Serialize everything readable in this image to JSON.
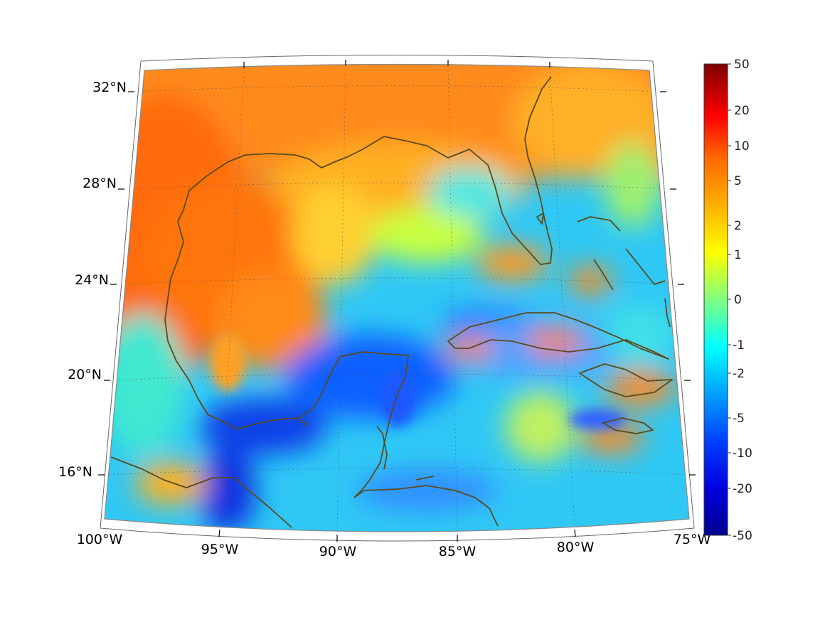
{
  "map": {
    "region": "Gulf of Mexico and Caribbean",
    "projection": "conic",
    "colormap": "jet",
    "coastline_color": "#5c4a1e",
    "lon_labels": [
      "100°W",
      "95°W",
      "90°W",
      "85°W",
      "80°W",
      "75°W"
    ],
    "lat_labels": [
      "16°N",
      "20°N",
      "24°N",
      "28°N",
      "32°N"
    ],
    "colorbar_ticks": [
      "50",
      "20",
      "10",
      "5",
      "2",
      "1",
      "0",
      "-1",
      "-2",
      "-5",
      "-10",
      "-20",
      "-50"
    ]
  }
}
